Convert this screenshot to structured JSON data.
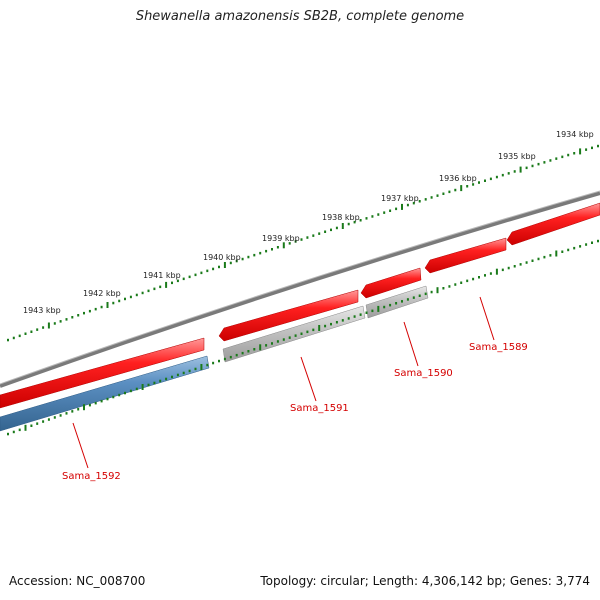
{
  "title": "Shewanella amazonensis SB2B, complete genome",
  "footer": {
    "accession": "Accession: NC_008700",
    "topology": "Topology: circular; Length: 4,306,142 bp; Genes: 3,774"
  },
  "colors": {
    "backbone": "#777777",
    "gene_forward": "#e00000",
    "gene_blue": "#4a7fb0",
    "gene_grey": "#b0b0b0",
    "ticks": "#1a7a1a",
    "labels": "#d40000"
  },
  "ruler": {
    "unit": "kbp",
    "labels": [
      "1934 kbp",
      "1935 kbp",
      "1936 kbp",
      "1937 kbp",
      "1938 kbp",
      "1939 kbp",
      "1940 kbp",
      "1941 kbp",
      "1942 kbp",
      "1943 kbp"
    ]
  },
  "genes": [
    {
      "name": "Sama_1589",
      "track": "outer",
      "color": "red"
    },
    {
      "name": "Sama_1590",
      "track": "outer",
      "color": "red"
    },
    {
      "name": "Sama_1590",
      "track": "inner",
      "color": "grey"
    },
    {
      "name": "Sama_1591",
      "track": "outer",
      "color": "red"
    },
    {
      "name": "Sama_1591",
      "track": "inner",
      "color": "grey"
    },
    {
      "name": "Sama_1592",
      "track": "outer",
      "color": "red"
    },
    {
      "name": "Sama_1592",
      "track": "inner",
      "color": "blue"
    }
  ],
  "gene_labels": [
    "Sama_1589",
    "Sama_1590",
    "Sama_1591",
    "Sama_1592"
  ]
}
